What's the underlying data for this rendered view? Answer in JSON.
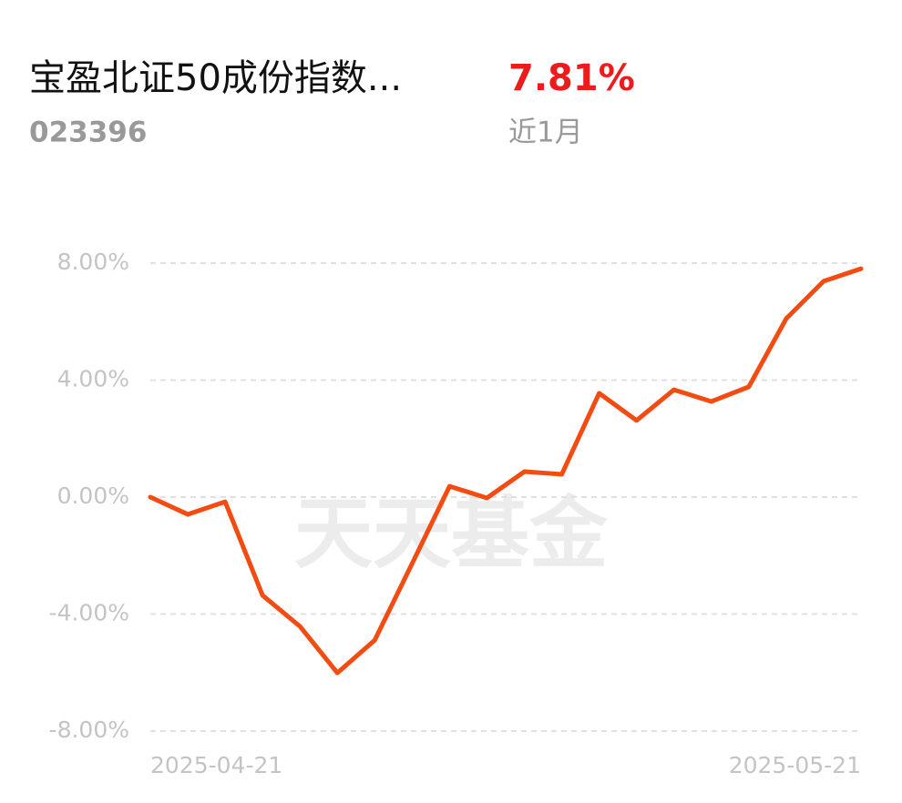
{
  "header": {
    "title": "宝盈北证50成份指数...",
    "code": "023396",
    "return": "7.81%",
    "period": "近1月"
  },
  "watermark": "天天基金",
  "chart_data": {
    "type": "line",
    "categories": [
      "2025-04-21",
      null,
      null,
      null,
      null,
      null,
      null,
      null,
      null,
      null,
      null,
      null,
      null,
      null,
      null,
      null,
      null,
      null,
      null,
      "2025-05-21"
    ],
    "series": [
      {
        "color": "#f24c12",
        "values": [
          0,
          -0.59,
          -0.16,
          -3.36,
          -4.42,
          -6.01,
          -4.89,
          -2.27,
          0.37,
          -0.03,
          0.87,
          0.78,
          3.55,
          2.62,
          3.67,
          3.27,
          3.77,
          6.1,
          7.38,
          7.81
        ]
      }
    ],
    "ylim": [
      -8,
      8
    ],
    "yticks": [
      {
        "value": 8,
        "label": "8.00%"
      },
      {
        "value": 4,
        "label": "4.00%"
      },
      {
        "value": 0,
        "label": "0.00%"
      },
      {
        "value": -4,
        "label": "-4.00%"
      },
      {
        "value": -8,
        "label": "-8.00%"
      }
    ],
    "grid": true
  }
}
